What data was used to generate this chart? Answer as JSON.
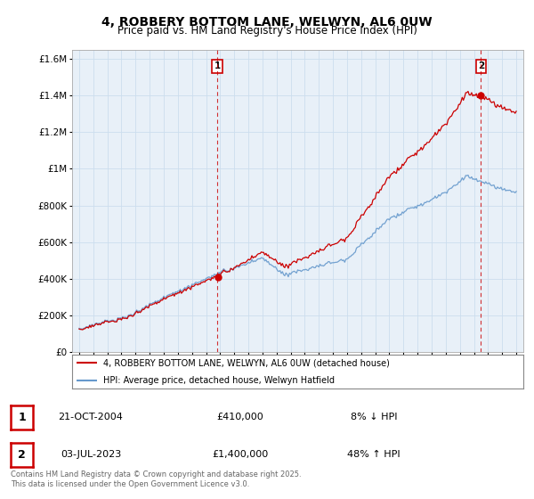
{
  "title": "4, ROBBERY BOTTOM LANE, WELWYN, AL6 0UW",
  "subtitle": "Price paid vs. HM Land Registry's House Price Index (HPI)",
  "title_fontsize": 10,
  "subtitle_fontsize": 8.5,
  "xlim": [
    1994.5,
    2026.5
  ],
  "ylim": [
    0,
    1650000
  ],
  "yticks": [
    0,
    200000,
    400000,
    600000,
    800000,
    1000000,
    1200000,
    1400000,
    1600000
  ],
  "ytick_labels": [
    "£0",
    "£200K",
    "£400K",
    "£600K",
    "£800K",
    "£1M",
    "£1.2M",
    "£1.4M",
    "£1.6M"
  ],
  "xticks": [
    1995,
    1996,
    1997,
    1998,
    1999,
    2000,
    2001,
    2002,
    2003,
    2004,
    2005,
    2006,
    2007,
    2008,
    2009,
    2010,
    2011,
    2012,
    2013,
    2014,
    2015,
    2016,
    2017,
    2018,
    2019,
    2020,
    2021,
    2022,
    2023,
    2024,
    2025,
    2026
  ],
  "hpi_color": "#6699cc",
  "sale_color": "#cc0000",
  "marker1_year": 2004.81,
  "marker1_price": 410000,
  "marker2_year": 2023.5,
  "marker2_price": 1400000,
  "legend_line1": "4, ROBBERY BOTTOM LANE, WELWYN, AL6 0UW (detached house)",
  "legend_line2": "HPI: Average price, detached house, Welwyn Hatfield",
  "annotation1_date": "21-OCT-2004",
  "annotation1_price": "£410,000",
  "annotation1_hpi": "8% ↓ HPI",
  "annotation2_date": "03-JUL-2023",
  "annotation2_price": "£1,400,000",
  "annotation2_hpi": "48% ↑ HPI",
  "footer": "Contains HM Land Registry data © Crown copyright and database right 2025.\nThis data is licensed under the Open Government Licence v3.0.",
  "bg_color": "#ffffff",
  "grid_color": "#ccddee",
  "plot_bg": "#e8f0f8"
}
